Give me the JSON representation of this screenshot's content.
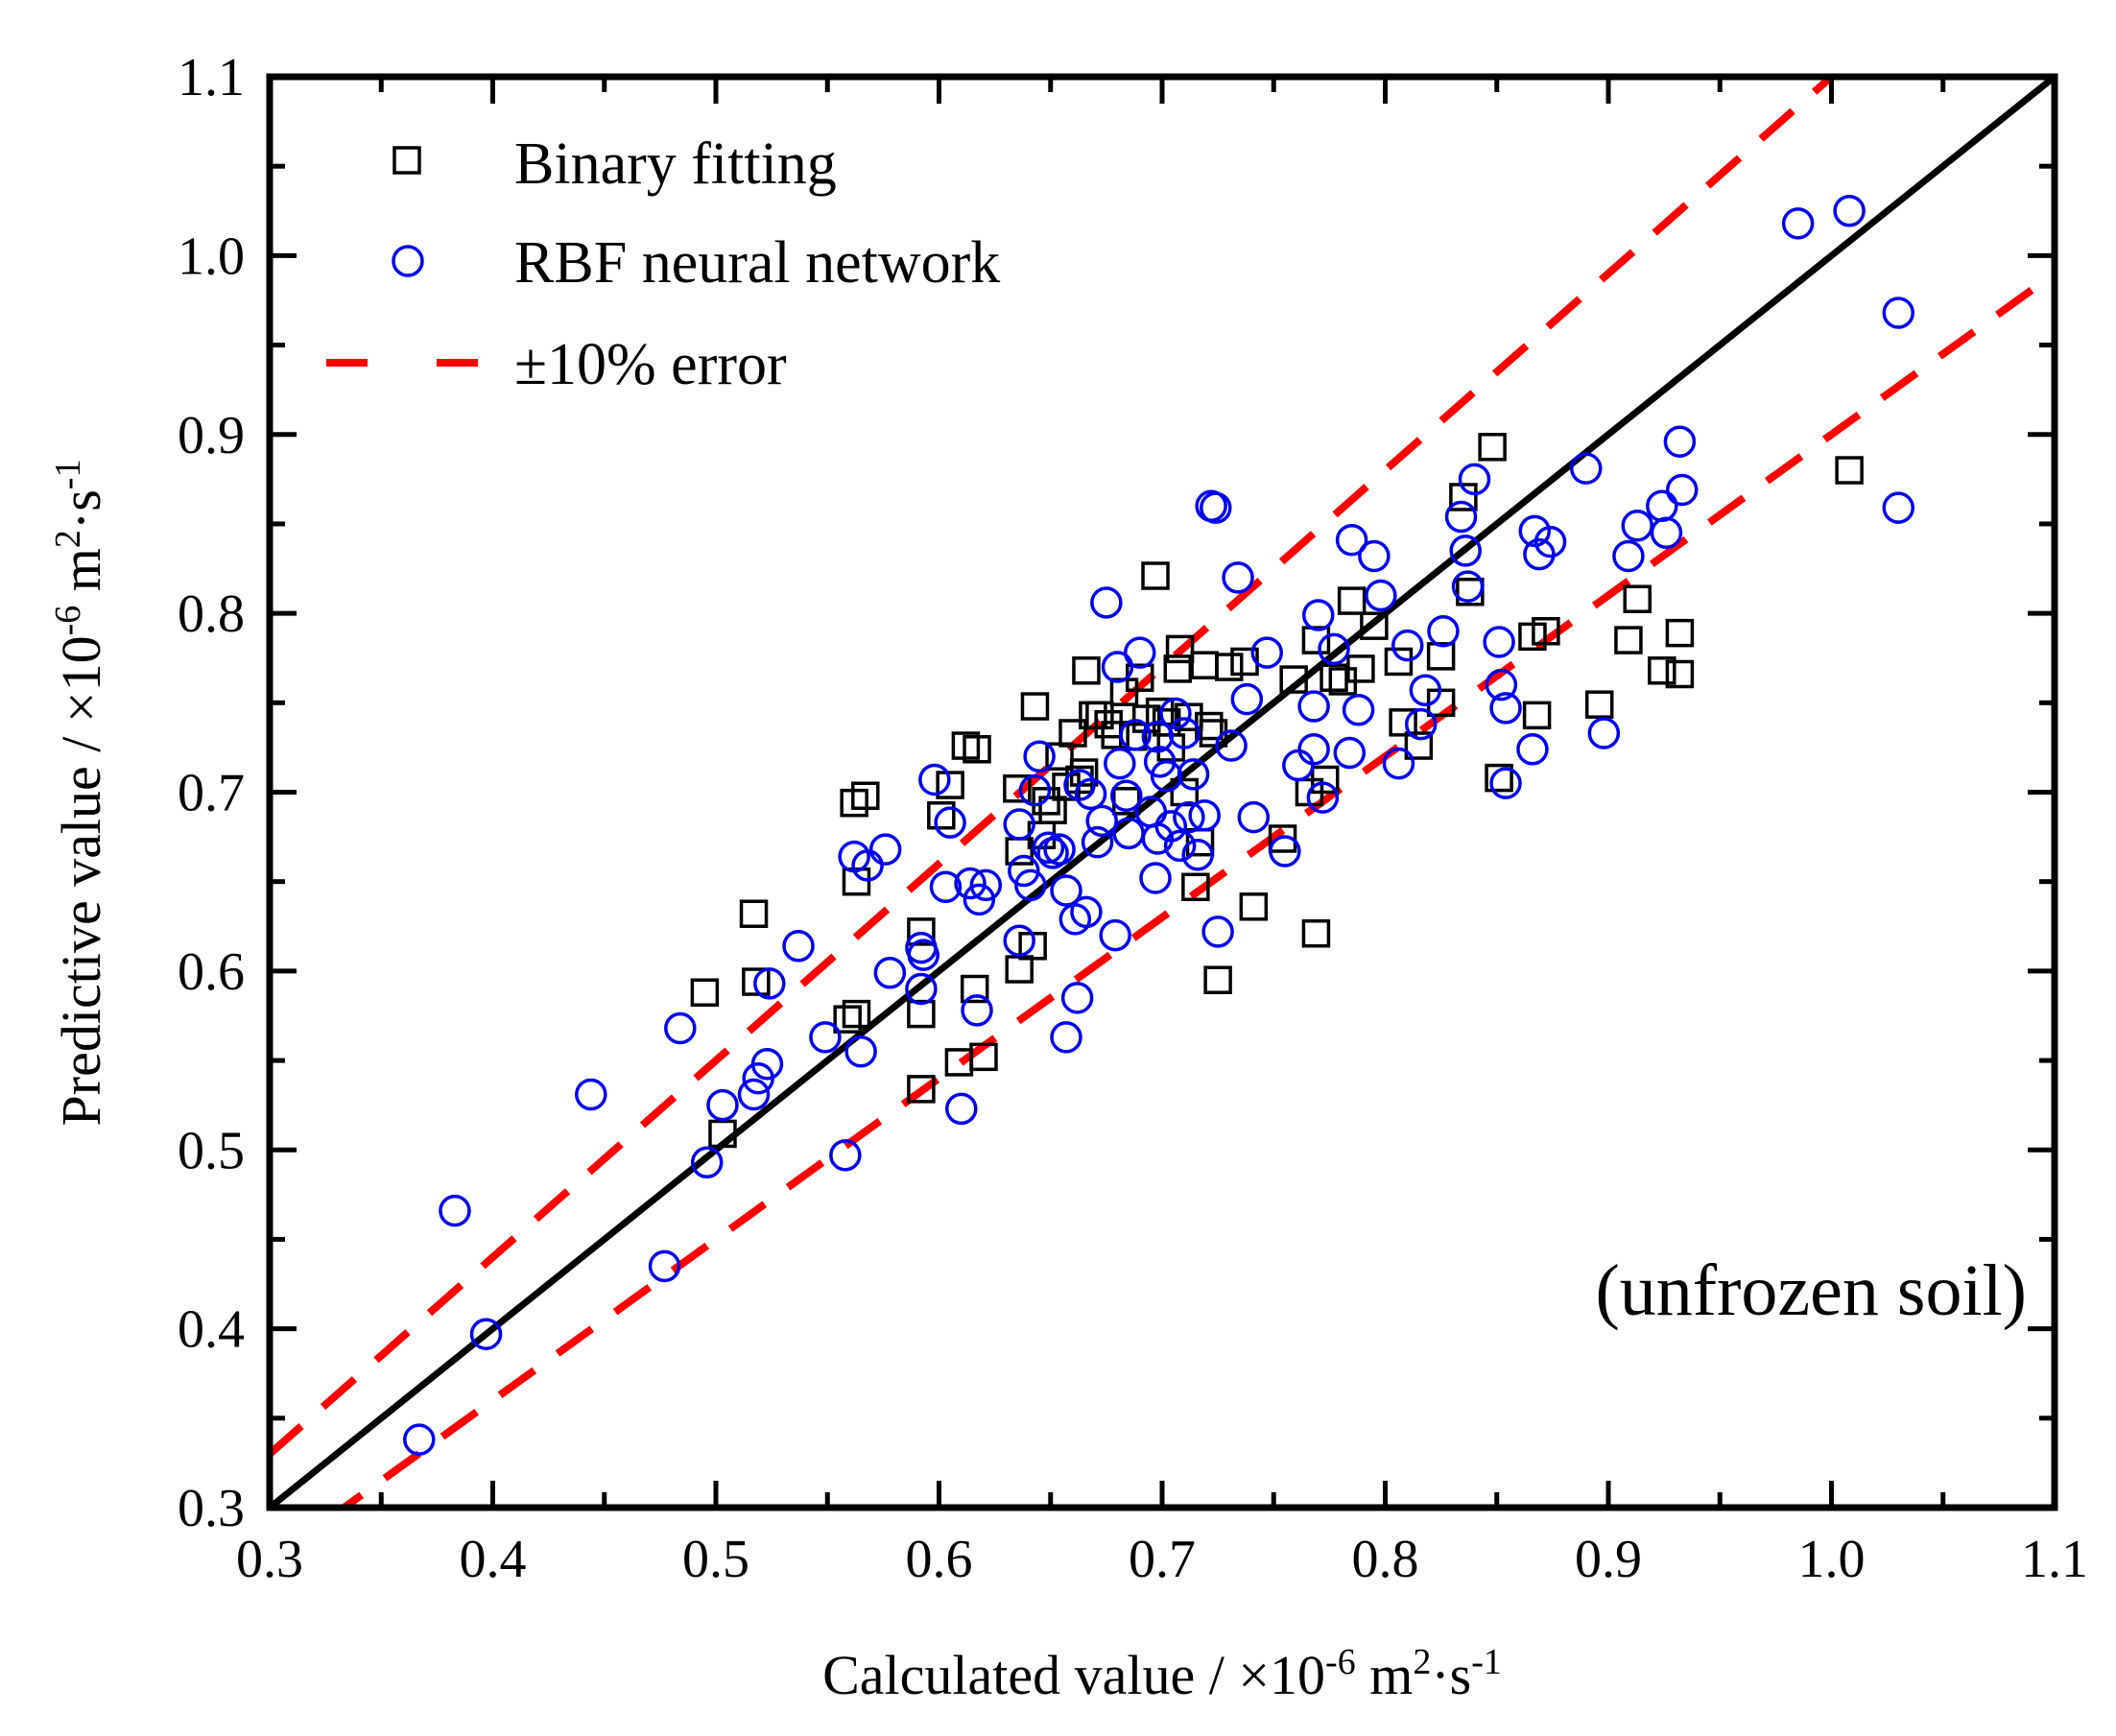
{
  "chart_data": {
    "type": "scatter",
    "title": "",
    "xlabel": {
      "main": "Calculated value / ×10",
      "exp1": "-6",
      "mid": " m",
      "exp2": "2",
      "mid2": "·s",
      "exp3": "-1"
    },
    "ylabel": {
      "main": "Predictive value / ×10",
      "exp1": "-6",
      "mid": " m",
      "exp2": "2",
      "mid2": "·s",
      "exp3": "-1"
    },
    "xlim": [
      0.3,
      1.1
    ],
    "ylim": [
      0.3,
      1.1
    ],
    "xticks": [
      "0.3",
      "0.4",
      "0.5",
      "0.6",
      "0.7",
      "0.8",
      "0.9",
      "1.0",
      "1.1"
    ],
    "yticks": [
      "0.3",
      "0.4",
      "0.5",
      "0.6",
      "0.7",
      "0.8",
      "0.9",
      "1.0",
      "1.1"
    ],
    "annotation": "(unfrozen soil)",
    "legend": {
      "position": "top-left",
      "entries": [
        "Binary fitting",
        "RBF neural network",
        "±10% error"
      ]
    },
    "colors": {
      "binary": "#000000",
      "rbf": "#0000ee",
      "error": "#ff0000",
      "ideal": "#000000"
    },
    "lines": [
      {
        "name": "1:1 line",
        "slope": 1.0
      },
      {
        "name": "+10% error",
        "slope": 1.1
      },
      {
        "name": "-10% error",
        "slope": 0.9
      }
    ],
    "series": [
      {
        "name": "Binary fitting",
        "marker": "square",
        "points": [
          [
            0.503,
            0.509
          ],
          [
            0.495,
            0.588
          ],
          [
            0.518,
            0.594
          ],
          [
            0.517,
            0.632
          ],
          [
            0.559,
            0.573
          ],
          [
            0.563,
            0.576
          ],
          [
            0.562,
            0.694
          ],
          [
            0.567,
            0.698
          ],
          [
            0.563,
            0.65
          ],
          [
            0.592,
            0.534
          ],
          [
            0.592,
            0.576
          ],
          [
            0.592,
            0.622
          ],
          [
            0.601,
            0.687
          ],
          [
            0.605,
            0.704
          ],
          [
            0.609,
            0.549
          ],
          [
            0.612,
            0.726
          ],
          [
            0.617,
            0.724
          ],
          [
            0.616,
            0.59
          ],
          [
            0.62,
            0.552
          ],
          [
            0.635,
            0.702
          ],
          [
            0.636,
            0.667
          ],
          [
            0.636,
            0.601
          ],
          [
            0.642,
            0.614
          ],
          [
            0.643,
            0.748
          ],
          [
            0.646,
            0.676
          ],
          [
            0.648,
            0.695
          ],
          [
            0.651,
            0.69
          ],
          [
            0.654,
            0.72
          ],
          [
            0.657,
            0.703
          ],
          [
            0.66,
            0.733
          ],
          [
            0.663,
            0.707
          ],
          [
            0.665,
            0.711
          ],
          [
            0.666,
            0.768
          ],
          [
            0.669,
            0.743
          ],
          [
            0.672,
            0.743
          ],
          [
            0.676,
            0.738
          ],
          [
            0.679,
            0.732
          ],
          [
            0.683,
            0.756
          ],
          [
            0.684,
            0.695
          ],
          [
            0.687,
            0.731
          ],
          [
            0.69,
            0.764
          ],
          [
            0.693,
            0.741
          ],
          [
            0.697,
            0.821
          ],
          [
            0.699,
            0.745
          ],
          [
            0.702,
            0.739
          ],
          [
            0.704,
            0.725
          ],
          [
            0.707,
            0.769
          ],
          [
            0.708,
            0.78
          ],
          [
            0.71,
            0.7
          ],
          [
            0.712,
            0.742
          ],
          [
            0.715,
            0.647
          ],
          [
            0.717,
            0.672
          ],
          [
            0.719,
            0.771
          ],
          [
            0.721,
            0.737
          ],
          [
            0.723,
            0.733
          ],
          [
            0.725,
            0.595
          ],
          [
            0.73,
            0.77
          ],
          [
            0.737,
            0.773
          ],
          [
            0.741,
            0.636
          ],
          [
            0.754,
            0.674
          ],
          [
            0.759,
            0.763
          ],
          [
            0.766,
            0.7
          ],
          [
            0.769,
            0.621
          ],
          [
            0.769,
            0.785
          ],
          [
            0.773,
            0.707
          ],
          [
            0.777,
            0.764
          ],
          [
            0.781,
            0.762
          ],
          [
            0.785,
            0.807
          ],
          [
            0.789,
            0.769
          ],
          [
            0.795,
            0.793
          ],
          [
            0.806,
            0.773
          ],
          [
            0.808,
            0.739
          ],
          [
            0.815,
            0.726
          ],
          [
            0.825,
            0.75
          ],
          [
            0.825,
            0.776
          ],
          [
            0.835,
            0.865
          ],
          [
            0.838,
            0.812
          ],
          [
            0.848,
            0.893
          ],
          [
            0.851,
            0.708
          ],
          [
            0.866,
            0.787
          ],
          [
            0.868,
            0.743
          ],
          [
            0.872,
            0.79
          ],
          [
            0.896,
            0.749
          ],
          [
            0.909,
            0.785
          ],
          [
            0.913,
            0.808
          ],
          [
            0.924,
            0.768
          ],
          [
            0.932,
            0.766
          ],
          [
            0.932,
            0.789
          ],
          [
            1.008,
            0.88
          ]
        ]
      },
      {
        "name": "RBF neural network",
        "marker": "circle",
        "points": [
          [
            0.367,
            0.338
          ],
          [
            0.383,
            0.466
          ],
          [
            0.397,
            0.397
          ],
          [
            0.444,
            0.531
          ],
          [
            0.477,
            0.435
          ],
          [
            0.484,
            0.568
          ],
          [
            0.496,
            0.493
          ],
          [
            0.503,
            0.525
          ],
          [
            0.517,
            0.531
          ],
          [
            0.519,
            0.54
          ],
          [
            0.523,
            0.548
          ],
          [
            0.524,
            0.593
          ],
          [
            0.537,
            0.614
          ],
          [
            0.549,
            0.563
          ],
          [
            0.558,
            0.497
          ],
          [
            0.562,
            0.664
          ],
          [
            0.565,
            0.555
          ],
          [
            0.568,
            0.659
          ],
          [
            0.576,
            0.668
          ],
          [
            0.578,
            0.599
          ],
          [
            0.592,
            0.59
          ],
          [
            0.592,
            0.613
          ],
          [
            0.593,
            0.609
          ],
          [
            0.598,
            0.707
          ],
          [
            0.603,
            0.647
          ],
          [
            0.605,
            0.683
          ],
          [
            0.61,
            0.523
          ],
          [
            0.614,
            0.649
          ],
          [
            0.617,
            0.578
          ],
          [
            0.618,
            0.64
          ],
          [
            0.621,
            0.648
          ],
          [
            0.636,
            0.617
          ],
          [
            0.636,
            0.682
          ],
          [
            0.638,
            0.656
          ],
          [
            0.641,
            0.648
          ],
          [
            0.643,
            0.701
          ],
          [
            0.645,
            0.72
          ],
          [
            0.649,
            0.669
          ],
          [
            0.651,
            0.666
          ],
          [
            0.654,
            0.668
          ],
          [
            0.657,
            0.645
          ],
          [
            0.657,
            0.563
          ],
          [
            0.661,
            0.629
          ],
          [
            0.662,
            0.585
          ],
          [
            0.663,
            0.704
          ],
          [
            0.666,
            0.633
          ],
          [
            0.668,
            0.699
          ],
          [
            0.671,
            0.672
          ],
          [
            0.673,
            0.684
          ],
          [
            0.675,
            0.806
          ],
          [
            0.679,
            0.62
          ],
          [
            0.68,
            0.77
          ],
          [
            0.681,
            0.716
          ],
          [
            0.684,
            0.698
          ],
          [
            0.685,
            0.677
          ],
          [
            0.688,
            0.732
          ],
          [
            0.69,
            0.778
          ],
          [
            0.695,
            0.689
          ],
          [
            0.697,
            0.652
          ],
          [
            0.698,
            0.674
          ],
          [
            0.698,
            0.731
          ],
          [
            0.699,
            0.717
          ],
          [
            0.702,
            0.709
          ],
          [
            0.704,
            0.681
          ],
          [
            0.706,
            0.744
          ],
          [
            0.708,
            0.67
          ],
          [
            0.71,
            0.733
          ],
          [
            0.712,
            0.686
          ],
          [
            0.714,
            0.71
          ],
          [
            0.716,
            0.665
          ],
          [
            0.719,
            0.687
          ],
          [
            0.722,
            0.86
          ],
          [
            0.724,
            0.859
          ],
          [
            0.725,
            0.622
          ],
          [
            0.731,
            0.726
          ],
          [
            0.734,
            0.82
          ],
          [
            0.738,
            0.752
          ],
          [
            0.741,
            0.686
          ],
          [
            0.747,
            0.778
          ],
          [
            0.755,
            0.667
          ],
          [
            0.761,
            0.715
          ],
          [
            0.768,
            0.748
          ],
          [
            0.768,
            0.724
          ],
          [
            0.77,
            0.799
          ],
          [
            0.772,
            0.697
          ],
          [
            0.777,
            0.78
          ],
          [
            0.784,
            0.722
          ],
          [
            0.785,
            0.841
          ],
          [
            0.788,
            0.746
          ],
          [
            0.795,
            0.832
          ],
          [
            0.798,
            0.81
          ],
          [
            0.806,
            0.716
          ],
          [
            0.81,
            0.782
          ],
          [
            0.816,
            0.738
          ],
          [
            0.818,
            0.757
          ],
          [
            0.826,
            0.79
          ],
          [
            0.834,
            0.854
          ],
          [
            0.836,
            0.835
          ],
          [
            0.837,
            0.815
          ],
          [
            0.84,
            0.875
          ],
          [
            0.851,
            0.784
          ],
          [
            0.852,
            0.76
          ],
          [
            0.854,
            0.747
          ],
          [
            0.854,
            0.705
          ],
          [
            0.866,
            0.724
          ],
          [
            0.867,
            0.846
          ],
          [
            0.869,
            0.833
          ],
          [
            0.874,
            0.84
          ],
          [
            0.89,
            0.881
          ],
          [
            0.898,
            0.733
          ],
          [
            0.909,
            0.832
          ],
          [
            0.913,
            0.849
          ],
          [
            0.924,
            0.86
          ],
          [
            0.926,
            0.845
          ],
          [
            0.932,
            0.896
          ],
          [
            0.933,
            0.869
          ],
          [
            0.985,
            1.018
          ],
          [
            1.008,
            1.025
          ],
          [
            1.03,
            0.968
          ],
          [
            1.03,
            0.859
          ]
        ]
      }
    ]
  }
}
